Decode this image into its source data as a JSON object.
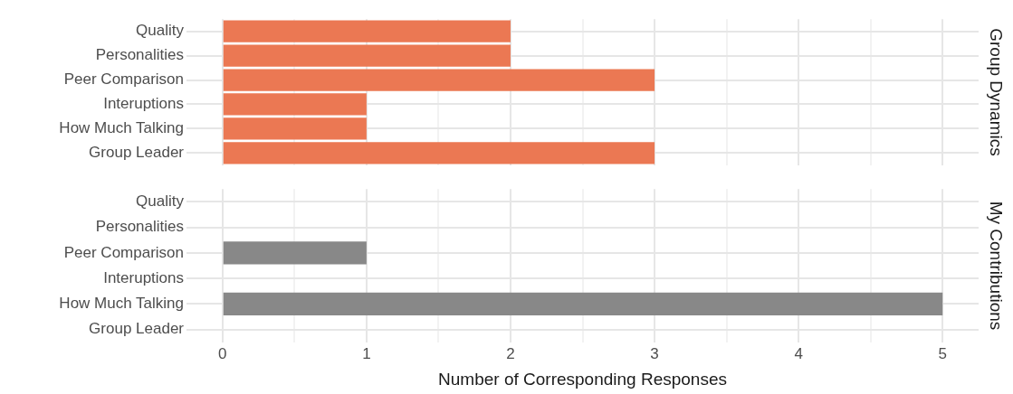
{
  "chart_data": [
    {
      "type": "bar",
      "orientation": "horizontal",
      "title": "Group Dynamics",
      "categories": [
        "Quality",
        "Personalities",
        "Peer Comparison",
        "Interuptions",
        "How Much Talking",
        "Group Leader"
      ],
      "values": [
        2,
        2,
        3,
        1,
        1,
        3
      ],
      "color": "#eb7853",
      "xlim": [
        -0.25,
        5.25
      ],
      "xticks": [
        0,
        {
          "value": 0.5,
          "label": null
        },
        1,
        {
          "value": 1.5,
          "label": null
        },
        2,
        {
          "value": 2.5,
          "label": null
        },
        3,
        {
          "value": 3.5,
          "label": null
        },
        4,
        {
          "value": 4.5,
          "label": null
        },
        5
      ],
      "grid": true,
      "tick_labels": "y"
    },
    {
      "type": "bar",
      "orientation": "horizontal",
      "title": "My Contributions",
      "xlabel": "Number of Corresponding Responses",
      "categories": [
        "Quality",
        "Personalities",
        "Peer Comparison",
        "Interuptions",
        "How Much Talking",
        "Group Leader"
      ],
      "values": [
        null,
        null,
        1,
        null,
        5,
        null
      ],
      "color": "#888888",
      "xlim": [
        -0.25,
        5.25
      ],
      "xticks": [
        0,
        {
          "value": 0.5,
          "label": null
        },
        1,
        {
          "value": 1.5,
          "label": null
        },
        2,
        {
          "value": 2.5,
          "label": null
        },
        3,
        {
          "value": 3.5,
          "label": null
        },
        4,
        {
          "value": 4.5,
          "label": null
        },
        5
      ],
      "grid": true
    }
  ]
}
